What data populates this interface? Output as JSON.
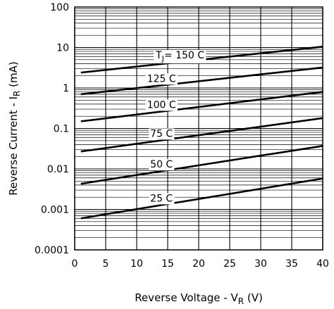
{
  "chart_data": {
    "type": "line",
    "title": "",
    "xlabel": {
      "main": "Reverse Voltage - V",
      "sub": "R",
      "unit": " (V)"
    },
    "ylabel": {
      "main": "Reverse Current - I",
      "sub": "R",
      "unit": " (mA)"
    },
    "x_scale": "linear",
    "y_scale": "log",
    "xlim": [
      0,
      40
    ],
    "ylim": [
      0.0001,
      100
    ],
    "x_ticks": [
      0,
      5,
      10,
      15,
      20,
      25,
      30,
      35,
      40
    ],
    "x_tick_labels": [
      "0",
      "5",
      "10",
      "15",
      "20",
      "25",
      "30",
      "35",
      "40"
    ],
    "y_ticks": [
      0.0001,
      0.001,
      0.01,
      0.1,
      1,
      10,
      100
    ],
    "y_tick_labels": [
      "0.0001",
      "0.001",
      "0.01",
      "0.1",
      "1",
      "10",
      "100"
    ],
    "grid": true,
    "series": [
      {
        "label": "150 C",
        "label_prefix": "T",
        "label_sub": "J",
        "label_eq": "= ",
        "label_x": 17,
        "x": [
          1,
          40
        ],
        "y": [
          2.4,
          10.5
        ]
      },
      {
        "label": "125 C",
        "label_x": 14,
        "x": [
          1,
          40
        ],
        "y": [
          0.7,
          3.2
        ]
      },
      {
        "label": "100 C",
        "label_x": 14,
        "x": [
          1,
          40
        ],
        "y": [
          0.15,
          0.8
        ]
      },
      {
        "label": "75 C",
        "label_x": 14,
        "x": [
          1,
          40
        ],
        "y": [
          0.027,
          0.18
        ]
      },
      {
        "label": "50 C",
        "label_x": 14,
        "x": [
          1,
          40
        ],
        "y": [
          0.0043,
          0.037
        ]
      },
      {
        "label": "25 C",
        "label_x": 14,
        "x": [
          1,
          40
        ],
        "y": [
          0.0006,
          0.0058
        ]
      }
    ]
  }
}
